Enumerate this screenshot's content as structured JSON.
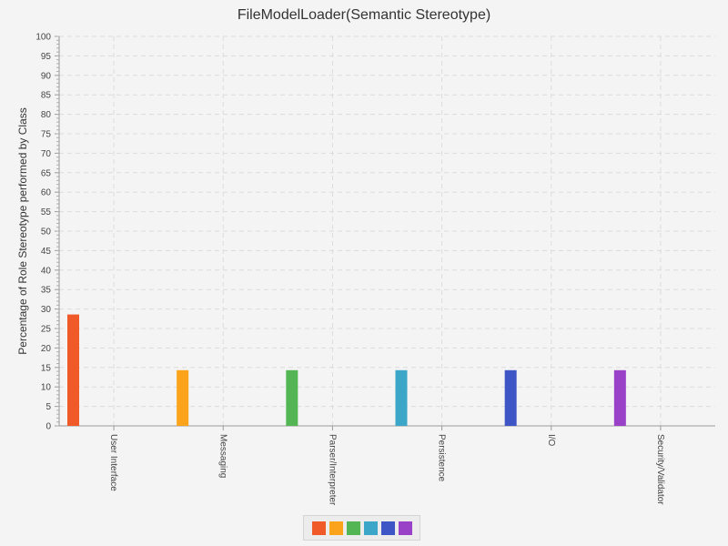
{
  "chart_data": {
    "type": "bar",
    "title": "FileModelLoader(Semantic Stereotype)",
    "xlabel": "",
    "ylabel": "Percentage of Role Stereotype performed by Class",
    "ylim": [
      0,
      100
    ],
    "y_major_ticks": [
      "0",
      "5",
      "10",
      "15",
      "20",
      "25",
      "30",
      "35",
      "40",
      "45",
      "50",
      "55",
      "60",
      "65",
      "70",
      "75",
      "80",
      "85",
      "90",
      "95",
      "100"
    ],
    "categories": [
      "User Interface",
      "Messaging",
      "Parser/Interpreter",
      "Persistence",
      "I/O",
      "Security/Validator"
    ],
    "values": [
      28.6,
      14.3,
      14.3,
      14.3,
      14.3,
      14.3
    ],
    "colors": [
      "#f05a28",
      "#faa31b",
      "#53b553",
      "#3ba6c8",
      "#3e55c6",
      "#9942c8"
    ],
    "grid": true,
    "legend": "bottom-center"
  }
}
